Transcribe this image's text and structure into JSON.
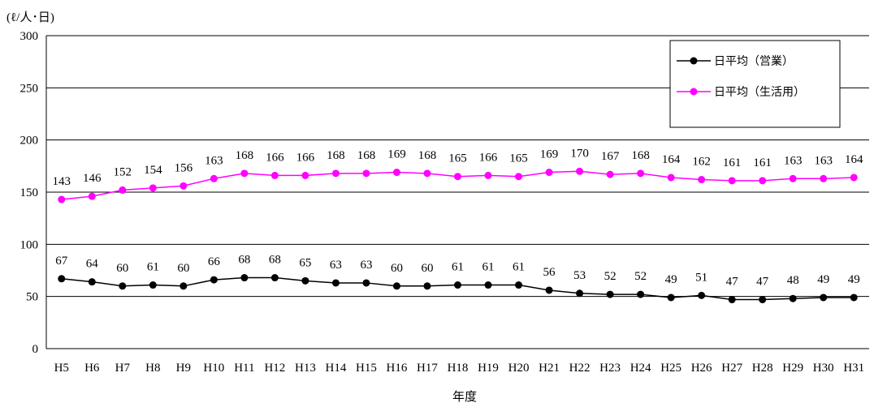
{
  "chart_data": {
    "type": "line",
    "unit_label": "(ℓ/人･日)",
    "xlabel": "年度",
    "ylabel": "",
    "ylim": [
      0,
      300
    ],
    "yticks": [
      0,
      50,
      100,
      150,
      200,
      250,
      300
    ],
    "grid": true,
    "legend_position": "top-right",
    "categories": [
      "H5",
      "H6",
      "H7",
      "H8",
      "H9",
      "H10",
      "H11",
      "H12",
      "H13",
      "H14",
      "H15",
      "H16",
      "H17",
      "H18",
      "H19",
      "H20",
      "H21",
      "H22",
      "H23",
      "H24",
      "H25",
      "H26",
      "H27",
      "H28",
      "H29",
      "H30",
      "H31"
    ],
    "series": [
      {
        "name": "日平均（営業）",
        "color": "#000000",
        "values": [
          67,
          64,
          60,
          61,
          60,
          66,
          68,
          68,
          65,
          63,
          63,
          60,
          60,
          61,
          61,
          61,
          56,
          53,
          52,
          52,
          49,
          51,
          47,
          47,
          48,
          49,
          49
        ]
      },
      {
        "name": "日平均（生活用）",
        "color": "#ff00ff",
        "values": [
          143,
          146,
          152,
          154,
          156,
          163,
          168,
          166,
          166,
          168,
          168,
          169,
          168,
          165,
          166,
          165,
          169,
          170,
          167,
          168,
          164,
          162,
          161,
          161,
          163,
          163,
          164
        ]
      }
    ]
  }
}
